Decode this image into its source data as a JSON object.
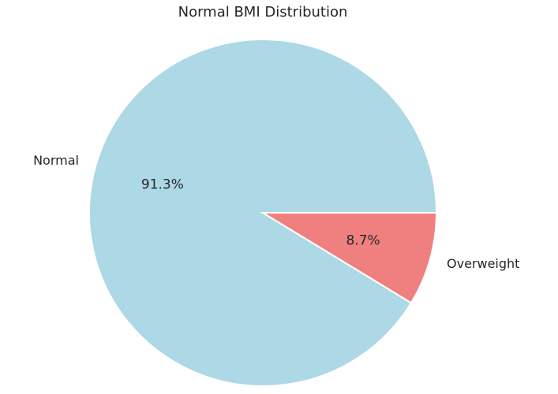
{
  "chart_data": {
    "type": "pie",
    "title": "Normal BMI Distribution",
    "categories": [
      "Normal",
      "Overweight"
    ],
    "values": [
      91.3,
      8.7
    ],
    "percent_labels": [
      "91.3%",
      "8.7%"
    ],
    "colors": [
      "#add8e6",
      "#f08080"
    ],
    "edge_color": "#ffffff",
    "start_angle_deg": 0,
    "direction": "counterclockwise",
    "legend": "none"
  }
}
